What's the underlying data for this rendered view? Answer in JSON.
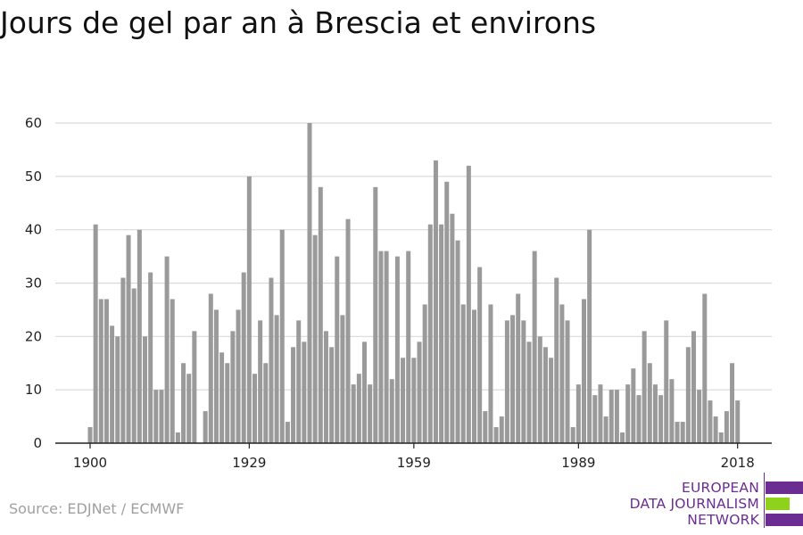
{
  "title": "Jours de gel par an à Brescia et environs",
  "source": "Source: EDJNet / ECMWF",
  "logo": {
    "line1": "EUROPEAN",
    "line2": "DATA JOURNALISM",
    "line3": "NETWORK",
    "colors": {
      "purple": "#6b2d91",
      "green": "#8fd11b"
    }
  },
  "colors": {
    "bar": "#9a9a9a",
    "grid": "#d9d9d9",
    "axis": "#222222"
  },
  "chart_data": {
    "type": "bar",
    "title": "Jours de gel par an à Brescia et environs",
    "xlabel": "",
    "ylabel": "",
    "ylim": [
      0,
      60
    ],
    "yticks": [
      0,
      10,
      20,
      30,
      40,
      50,
      60
    ],
    "xticks": [
      1900,
      1929,
      1959,
      1989,
      2018
    ],
    "grid": true,
    "categories": [
      1900,
      1901,
      1902,
      1903,
      1904,
      1905,
      1906,
      1907,
      1908,
      1909,
      1910,
      1911,
      1912,
      1913,
      1914,
      1915,
      1916,
      1917,
      1918,
      1919,
      1920,
      1921,
      1922,
      1923,
      1924,
      1925,
      1926,
      1927,
      1928,
      1929,
      1930,
      1931,
      1932,
      1933,
      1934,
      1935,
      1936,
      1937,
      1938,
      1939,
      1940,
      1941,
      1942,
      1943,
      1944,
      1945,
      1946,
      1947,
      1948,
      1949,
      1950,
      1951,
      1952,
      1953,
      1954,
      1955,
      1956,
      1957,
      1958,
      1959,
      1960,
      1961,
      1962,
      1963,
      1964,
      1965,
      1966,
      1967,
      1968,
      1969,
      1970,
      1971,
      1972,
      1973,
      1974,
      1975,
      1976,
      1977,
      1978,
      1979,
      1980,
      1981,
      1982,
      1983,
      1984,
      1985,
      1986,
      1987,
      1988,
      1989,
      1990,
      1991,
      1992,
      1993,
      1994,
      1995,
      1996,
      1997,
      1998,
      1999,
      2000,
      2001,
      2002,
      2003,
      2004,
      2005,
      2006,
      2007,
      2008,
      2009,
      2010,
      2011,
      2012,
      2013,
      2014,
      2015,
      2016,
      2017,
      2018
    ],
    "values": [
      3,
      41,
      27,
      27,
      22,
      20,
      31,
      39,
      29,
      40,
      20,
      32,
      10,
      10,
      35,
      27,
      2,
      15,
      13,
      21,
      0,
      6,
      28,
      25,
      17,
      15,
      21,
      25,
      32,
      50,
      13,
      23,
      15,
      31,
      24,
      40,
      4,
      18,
      23,
      19,
      60,
      39,
      48,
      21,
      18,
      35,
      24,
      42,
      11,
      13,
      19,
      11,
      48,
      36,
      36,
      12,
      35,
      16,
      36,
      16,
      19,
      26,
      41,
      53,
      41,
      49,
      43,
      38,
      26,
      52,
      25,
      33,
      6,
      26,
      3,
      5,
      23,
      24,
      28,
      23,
      19,
      36,
      20,
      18,
      16,
      31,
      26,
      23,
      3,
      11,
      27,
      40,
      9,
      11,
      5,
      10,
      10,
      2,
      11,
      14,
      9,
      21,
      15,
      11,
      9,
      23,
      12,
      4,
      4,
      18,
      21,
      10,
      28,
      8,
      5,
      2,
      6,
      15,
      8
    ]
  }
}
